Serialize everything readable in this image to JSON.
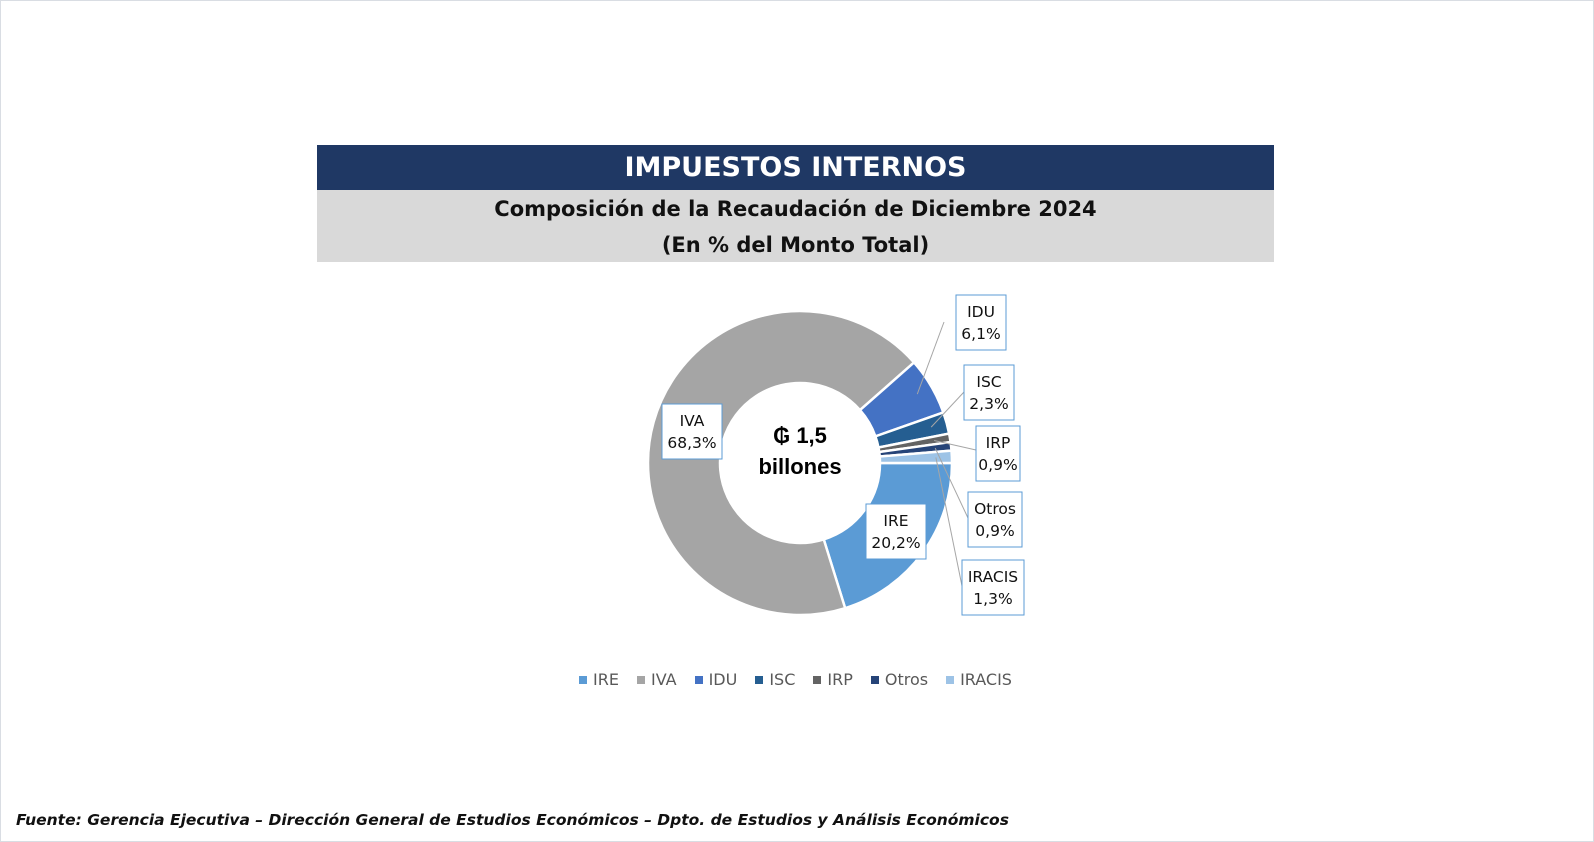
{
  "header": {
    "title": "IMPUESTOS INTERNOS",
    "subtitle_line1": "Composición de la Recaudación de Diciembre 2024",
    "subtitle_line2": "(En % del Monto Total)"
  },
  "center_label": {
    "line1": "₲ 1,5",
    "line2": "billones"
  },
  "chart_data": {
    "type": "pie",
    "donut": true,
    "title": "Composición de la Recaudación de Diciembre 2024",
    "subtitle": "(En % del Monto Total)",
    "unit": "%",
    "legend_position": "bottom",
    "slices": [
      {
        "name": "IRE",
        "value": 20.2,
        "label": "20,2%",
        "color": "#5b9bd5"
      },
      {
        "name": "IVA",
        "value": 68.3,
        "label": "68,3%",
        "color": "#a5a5a5"
      },
      {
        "name": "IDU",
        "value": 6.1,
        "label": "6,1%",
        "color": "#4472c4"
      },
      {
        "name": "ISC",
        "value": 2.3,
        "label": "2,3%",
        "color": "#255e91"
      },
      {
        "name": "IRP",
        "value": 0.9,
        "label": "0,9%",
        "color": "#636363"
      },
      {
        "name": "Otros",
        "value": 0.9,
        "label": "0,9%",
        "color": "#264478"
      },
      {
        "name": "IRACIS",
        "value": 1.3,
        "label": "1,3%",
        "color": "#9dc3e6"
      }
    ]
  },
  "source": "Fuente: Gerencia Ejecutiva – Dirección General de Estudios Económicos – Dpto. de Estudios y Análisis Económicos"
}
